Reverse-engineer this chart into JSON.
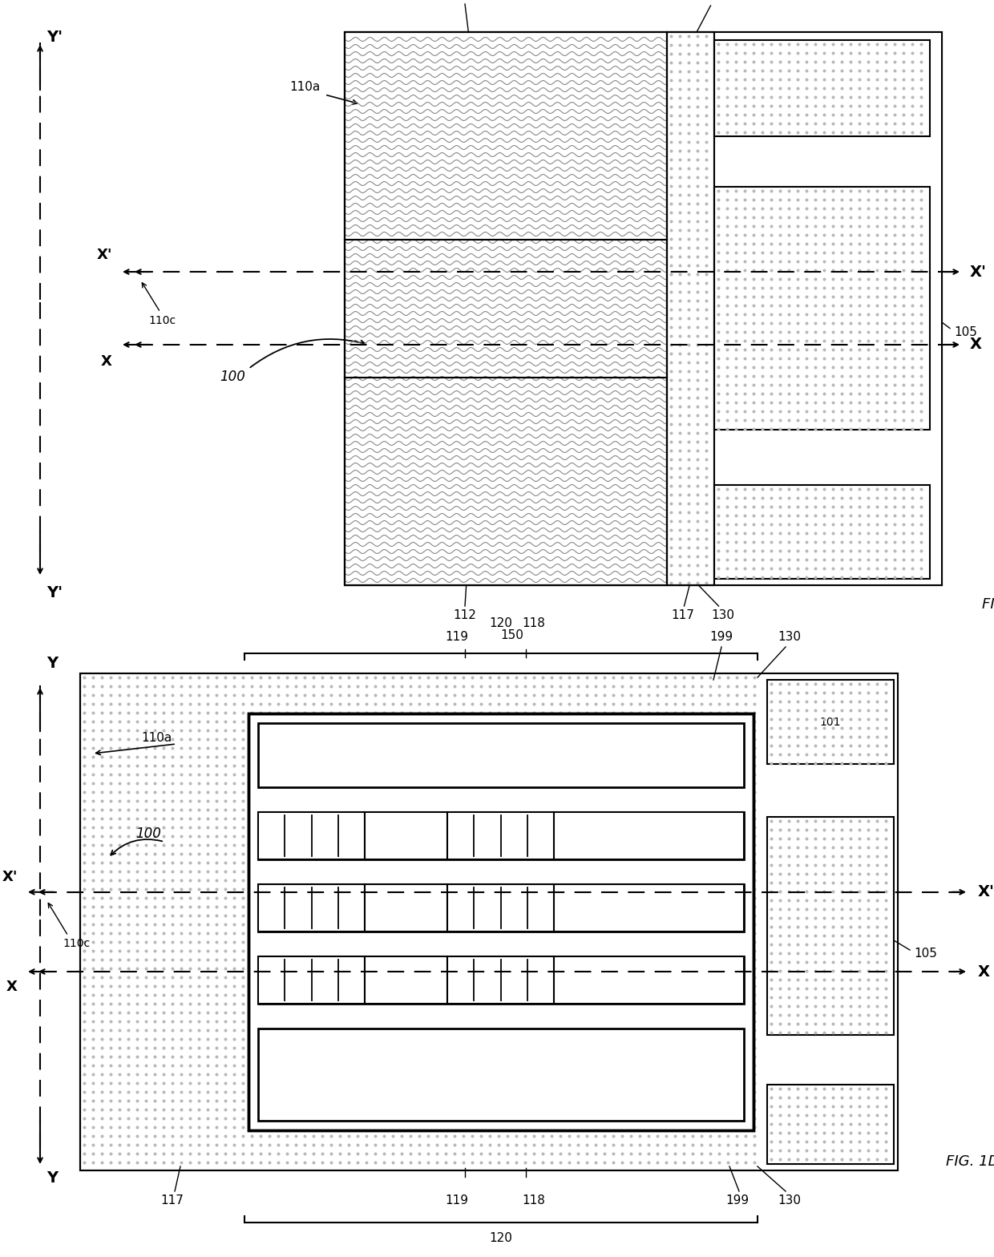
{
  "fig_width": 12.4,
  "fig_height": 15.68,
  "bg_color": "#ffffff",
  "line_color": "#000000"
}
